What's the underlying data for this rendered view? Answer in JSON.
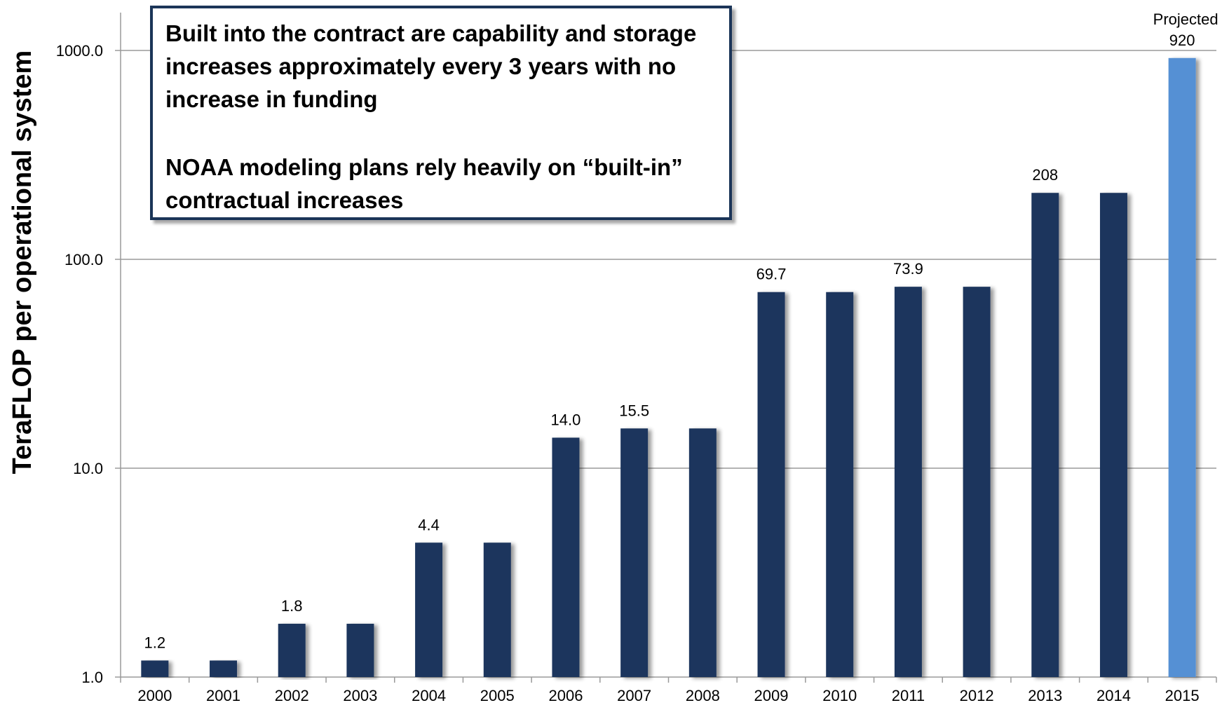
{
  "chart_data": {
    "type": "bar",
    "categories": [
      "2000",
      "2001",
      "2002",
      "2003",
      "2004",
      "2005",
      "2006",
      "2007",
      "2008",
      "2009",
      "2010",
      "2011",
      "2012",
      "2013",
      "2014",
      "2015"
    ],
    "values": [
      1.2,
      1.2,
      1.8,
      1.8,
      4.4,
      4.4,
      14.0,
      15.5,
      15.5,
      69.7,
      69.7,
      73.9,
      73.9,
      208,
      208,
      920
    ],
    "data_labels": [
      "1.2",
      "",
      "1.8",
      "",
      "4.4",
      "",
      "14.0",
      "15.5",
      "",
      "69.7",
      "",
      "73.9",
      "",
      "208",
      "",
      "920"
    ],
    "projected_label": "Projected",
    "ylabel": "TeraFLOP per operational system",
    "yscale": "log",
    "ylim": [
      1,
      1600
    ],
    "yticks": [
      "1.0",
      "10.0",
      "100.0",
      "1000.0"
    ],
    "grid": true,
    "legend": "none",
    "colors": {
      "bar": "#1b365d",
      "projected_bar": "#5590d4",
      "grid": "#9a9a9a",
      "axis": "#9a9a9a",
      "callout_border": "#1b3558"
    }
  },
  "callout": {
    "paragraph1": "Built into the contract are capability and storage increases approximately every 3 years with no increase in funding",
    "paragraph2": "NOAA modeling plans rely heavily on “built-in” contractual increases"
  }
}
